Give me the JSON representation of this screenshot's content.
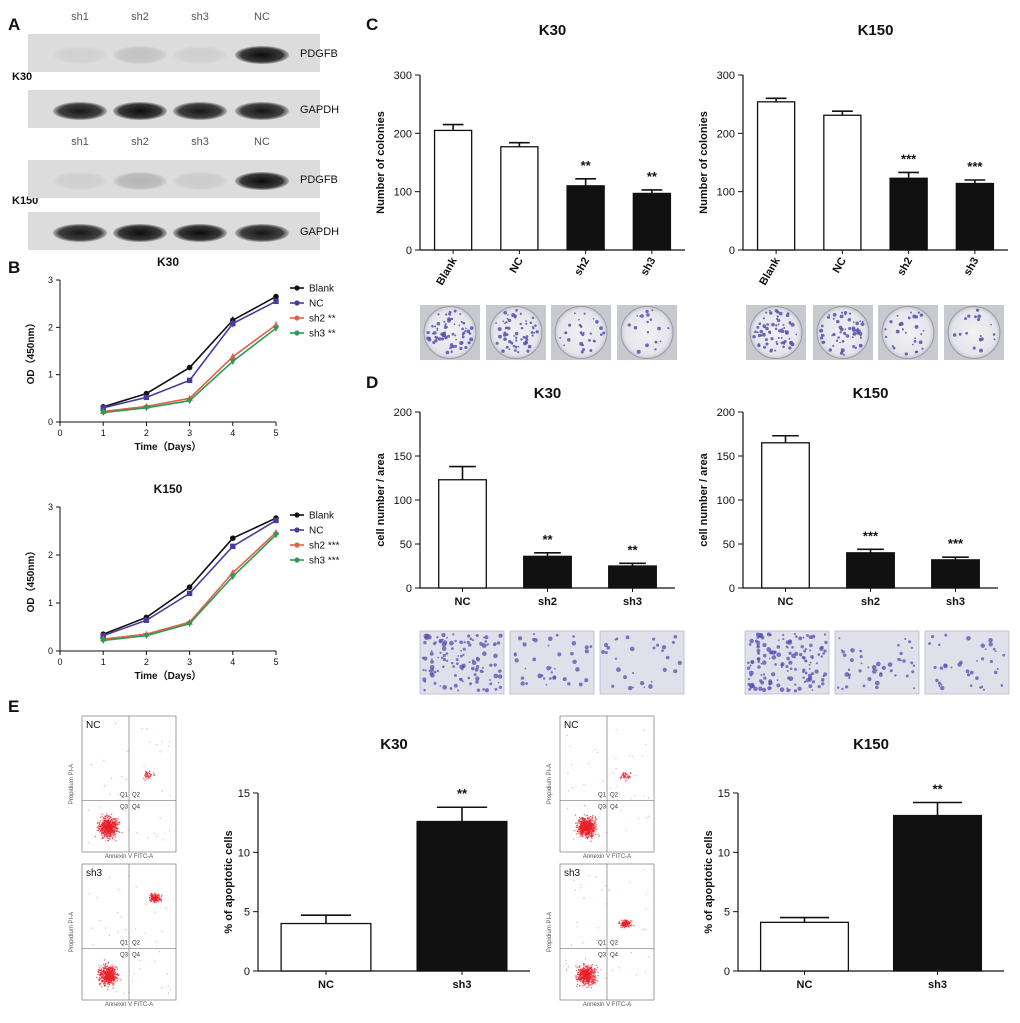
{
  "panel_letters": {
    "a": "A",
    "b": "B",
    "c": "C",
    "d": "D",
    "e": "E"
  },
  "blot": {
    "lanes": [
      "sh1",
      "sh2",
      "sh3",
      "NC"
    ],
    "groups": [
      {
        "cell": "K30",
        "bands": [
          {
            "label": "PDGFB",
            "intensity": [
              0.05,
              0.12,
              0.06,
              0.95
            ]
          },
          {
            "label": "GAPDH",
            "intensity": [
              0.9,
              0.95,
              0.9,
              0.9
            ]
          }
        ]
      },
      {
        "cell": "K150",
        "bands": [
          {
            "label": "PDGFB",
            "intensity": [
              0.06,
              0.18,
              0.08,
              0.95
            ]
          },
          {
            "label": "GAPDH",
            "intensity": [
              0.9,
              0.95,
              0.95,
              0.9
            ]
          }
        ]
      }
    ]
  },
  "colors": {
    "open_bar": "#ffffff",
    "filled_bar": "#111111",
    "blank": "#111111",
    "nc": "#4a3a9c",
    "sh2": "#e0604a",
    "sh3": "#2e9a55",
    "flow_dot": "#e8202a",
    "stain": "#5a4fb0"
  },
  "chart_data": [
    {
      "id": "B1",
      "type": "line",
      "title": "K30",
      "xlabel": "Time（Days）",
      "ylabel": "OD（450nm）",
      "x": [
        1,
        2,
        3,
        4,
        5
      ],
      "xlim": [
        0,
        5
      ],
      "ylim": [
        0,
        3
      ],
      "xticks": [
        "0",
        "1",
        "2",
        "3",
        "4",
        "5"
      ],
      "yticks": [
        "0",
        "1",
        "2",
        "3"
      ],
      "series": [
        {
          "name": "Blank",
          "legend": "Blank",
          "marker": "circle",
          "values": [
            0.32,
            0.6,
            1.15,
            2.15,
            2.65
          ],
          "err": [
            0.03,
            0.03,
            0.05,
            0.08,
            0.06
          ]
        },
        {
          "name": "NC",
          "legend": "NC",
          "marker": "square",
          "values": [
            0.3,
            0.52,
            0.88,
            2.08,
            2.55
          ],
          "err": [
            0.03,
            0.03,
            0.05,
            0.08,
            0.06
          ]
        },
        {
          "name": "sh2",
          "legend": "sh2 **",
          "marker": "triangle",
          "values": [
            0.22,
            0.33,
            0.5,
            1.38,
            2.05
          ],
          "err": [
            0.03,
            0.03,
            0.04,
            0.06,
            0.08
          ]
        },
        {
          "name": "sh3",
          "legend": "sh3 **",
          "marker": "triangle-down",
          "values": [
            0.2,
            0.3,
            0.45,
            1.28,
            1.98
          ],
          "err": [
            0.03,
            0.03,
            0.04,
            0.06,
            0.06
          ]
        }
      ]
    },
    {
      "id": "B2",
      "type": "line",
      "title": "K150",
      "xlabel": "Time（Days）",
      "ylabel": "OD（450nm）",
      "x": [
        1,
        2,
        3,
        4,
        5
      ],
      "xlim": [
        0,
        5
      ],
      "ylim": [
        0,
        3
      ],
      "xticks": [
        "0",
        "1",
        "2",
        "3",
        "4",
        "5"
      ],
      "yticks": [
        "0",
        "1",
        "2",
        "3"
      ],
      "series": [
        {
          "name": "Blank",
          "legend": "Blank",
          "marker": "circle",
          "values": [
            0.35,
            0.7,
            1.33,
            2.35,
            2.77
          ],
          "err": [
            0.03,
            0.03,
            0.05,
            0.05,
            0.05
          ]
        },
        {
          "name": "NC",
          "legend": "NC",
          "marker": "square",
          "values": [
            0.32,
            0.64,
            1.2,
            2.18,
            2.72
          ],
          "err": [
            0.03,
            0.03,
            0.05,
            0.05,
            0.05
          ]
        },
        {
          "name": "sh2",
          "legend": "sh2 ***",
          "marker": "triangle",
          "values": [
            0.25,
            0.35,
            0.6,
            1.63,
            2.47
          ],
          "err": [
            0.03,
            0.03,
            0.04,
            0.05,
            0.06
          ]
        },
        {
          "name": "sh3",
          "legend": "sh3 ***",
          "marker": "triangle-down",
          "values": [
            0.22,
            0.32,
            0.57,
            1.55,
            2.42
          ],
          "err": [
            0.03,
            0.03,
            0.04,
            0.05,
            0.06
          ]
        }
      ]
    },
    {
      "id": "C1",
      "type": "bar",
      "title": "K30",
      "ylabel": "Number of colonies",
      "ylim": [
        0,
        300
      ],
      "yticks": [
        "0",
        "100",
        "200",
        "300"
      ],
      "categories": [
        "Blank",
        "NC",
        "sh2",
        "sh3"
      ],
      "values": [
        205,
        177,
        110,
        97
      ],
      "err": [
        10,
        7,
        12,
        6
      ],
      "filled": [
        false,
        false,
        true,
        true
      ],
      "sig": [
        "",
        "",
        "**",
        "**"
      ]
    },
    {
      "id": "C2",
      "type": "bar",
      "title": "K150",
      "ylabel": "Number of colonies",
      "ylim": [
        0,
        300
      ],
      "yticks": [
        "0",
        "100",
        "200",
        "300"
      ],
      "categories": [
        "Blank",
        "NC",
        "sh2",
        "sh3"
      ],
      "values": [
        254,
        231,
        123,
        114
      ],
      "err": [
        6,
        7,
        10,
        6
      ],
      "filled": [
        false,
        false,
        true,
        true
      ],
      "sig": [
        "",
        "",
        "***",
        "***"
      ]
    },
    {
      "id": "D1",
      "type": "bar",
      "title": "K30",
      "ylabel": "cell number / area",
      "ylim": [
        0,
        200
      ],
      "yticks": [
        "0",
        "50",
        "100",
        "150",
        "200"
      ],
      "categories": [
        "NC",
        "sh2",
        "sh3"
      ],
      "values": [
        123,
        36,
        25
      ],
      "err": [
        15,
        4,
        3
      ],
      "filled": [
        false,
        true,
        true
      ],
      "sig": [
        "",
        "**",
        "**"
      ]
    },
    {
      "id": "D2",
      "type": "bar",
      "title": "K150",
      "ylabel": "cell number / area",
      "ylim": [
        0,
        200
      ],
      "yticks": [
        "0",
        "50",
        "100",
        "150",
        "200"
      ],
      "categories": [
        "NC",
        "sh2",
        "sh3"
      ],
      "values": [
        165,
        40,
        32
      ],
      "err": [
        8,
        4,
        3
      ],
      "filled": [
        false,
        true,
        true
      ],
      "sig": [
        "",
        "***",
        "***"
      ]
    },
    {
      "id": "E1",
      "type": "bar",
      "title": "K30",
      "ylabel": "% of apoptotic cells",
      "ylim": [
        0,
        15
      ],
      "yticks": [
        "0",
        "5",
        "10",
        "15"
      ],
      "categories": [
        "NC",
        "sh3"
      ],
      "values": [
        4.0,
        12.6
      ],
      "err": [
        0.7,
        1.2
      ],
      "filled": [
        false,
        true
      ],
      "sig": [
        "",
        "**"
      ]
    },
    {
      "id": "E2",
      "type": "bar",
      "title": "K150",
      "ylabel": "% of apoptotic cells",
      "ylim": [
        0,
        15
      ],
      "yticks": [
        "0",
        "5",
        "10",
        "15"
      ],
      "categories": [
        "NC",
        "sh3"
      ],
      "values": [
        4.1,
        13.1
      ],
      "err": [
        0.4,
        1.1
      ],
      "filled": [
        false,
        true
      ],
      "sig": [
        "",
        "**"
      ]
    }
  ],
  "colony_plates": {
    "C1": [
      "Blank",
      "NC",
      "sh2",
      "sh3"
    ],
    "C2": [
      "Blank",
      "NC",
      "sh2",
      "sh3"
    ]
  },
  "transwell_images": {
    "D1": [
      "NC",
      "sh2",
      "sh3"
    ],
    "D2": [
      "NC",
      "sh2",
      "sh3"
    ]
  },
  "flow": {
    "x_axis": "Annexin V FITC-A",
    "y_axis": "Propidium PI-A",
    "quadrants": [
      "Q1",
      "Q2",
      "Q3",
      "Q4"
    ],
    "plots": [
      {
        "label": "NC"
      },
      {
        "label": "sh3"
      },
      {
        "label": "NC"
      },
      {
        "label": "sh3"
      }
    ]
  }
}
